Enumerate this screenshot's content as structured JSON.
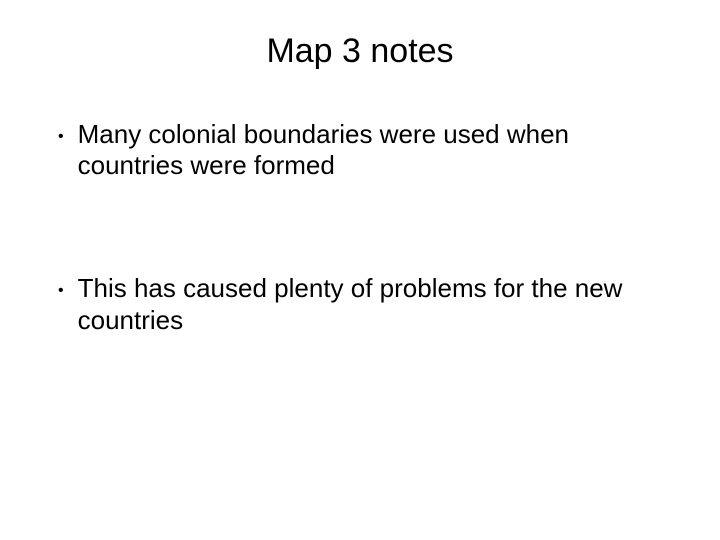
{
  "slide": {
    "title": "Map 3 notes",
    "bullets": [
      "Many colonial boundaries were used when countries were formed",
      "This has caused plenty of problems for the new countries"
    ],
    "title_fontsize": 34,
    "body_fontsize": 26,
    "text_color": "#000000",
    "background_color": "#ffffff",
    "font_family": "Arial"
  }
}
